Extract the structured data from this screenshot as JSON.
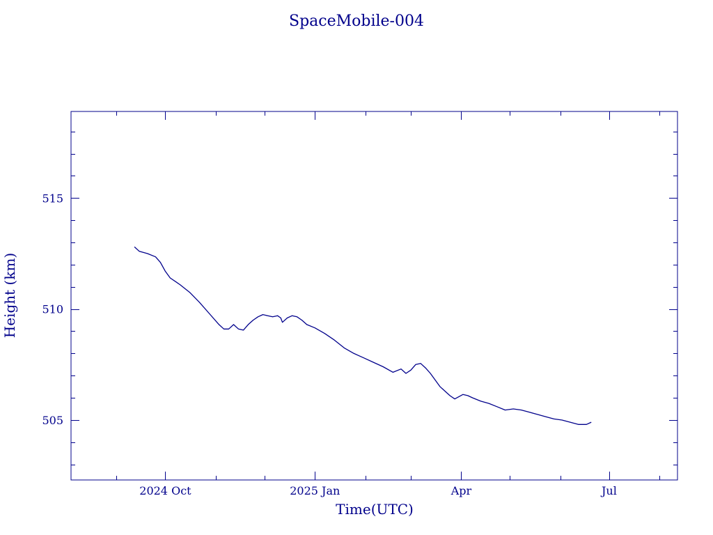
{
  "colors": {
    "ink": "#00008b",
    "background": "#ffffff"
  },
  "chart_data": {
    "type": "line",
    "title": "SpaceMobile-004",
    "xlabel": "Time(UTC)",
    "ylabel": "Height (km)",
    "x_is_date": true,
    "xlim": [
      "2024-08-04",
      "2025-08-12"
    ],
    "ylim": [
      502.3,
      518.9
    ],
    "grid": false,
    "x_ticks": [
      {
        "label": "2024 Oct",
        "value": "2024-10-01"
      },
      {
        "label": "2025 Jan",
        "value": "2025-01-01"
      },
      {
        "label": "Apr",
        "value": "2025-04-01"
      },
      {
        "label": "Jul",
        "value": "2025-07-01"
      }
    ],
    "y_ticks": [
      {
        "label": "505",
        "value": 505
      },
      {
        "label": "510",
        "value": 510
      },
      {
        "label": "515",
        "value": 515
      }
    ],
    "series": [
      {
        "x": [
          "2024-09-12",
          "2024-09-15",
          "2024-09-20",
          "2024-09-25",
          "2024-09-28",
          "2024-10-01",
          "2024-10-04",
          "2024-10-10",
          "2024-10-16",
          "2024-10-22",
          "2024-10-28",
          "2024-11-03",
          "2024-11-06",
          "2024-11-09",
          "2024-11-12",
          "2024-11-15",
          "2024-11-18",
          "2024-11-21",
          "2024-11-24",
          "2024-11-27",
          "2024-11-30",
          "2024-12-03",
          "2024-12-06",
          "2024-12-09",
          "2024-12-11",
          "2024-12-12",
          "2024-12-15",
          "2024-12-18",
          "2024-12-21",
          "2024-12-24",
          "2024-12-27",
          "2025-01-01",
          "2025-01-07",
          "2025-01-13",
          "2025-01-19",
          "2025-01-25",
          "2025-01-31",
          "2025-02-06",
          "2025-02-12",
          "2025-02-18",
          "2025-02-23",
          "2025-02-26",
          "2025-03-01",
          "2025-03-04",
          "2025-03-07",
          "2025-03-10",
          "2025-03-13",
          "2025-03-16",
          "2025-03-19",
          "2025-03-22",
          "2025-03-25",
          "2025-03-28",
          "2025-04-02",
          "2025-04-05",
          "2025-04-08",
          "2025-04-13",
          "2025-04-18",
          "2025-04-23",
          "2025-04-28",
          "2025-05-03",
          "2025-05-08",
          "2025-05-13",
          "2025-05-18",
          "2025-05-23",
          "2025-05-28",
          "2025-06-02",
          "2025-06-07",
          "2025-06-12",
          "2025-06-17",
          "2025-06-20"
        ],
        "y": [
          512.8,
          512.6,
          512.5,
          512.35,
          512.1,
          511.7,
          511.4,
          511.1,
          510.75,
          510.3,
          509.8,
          509.3,
          509.1,
          509.1,
          509.3,
          509.1,
          509.05,
          509.3,
          509.5,
          509.65,
          509.75,
          509.7,
          509.65,
          509.7,
          509.6,
          509.4,
          509.6,
          509.7,
          509.65,
          509.5,
          509.3,
          509.15,
          508.9,
          508.6,
          508.25,
          508.0,
          507.8,
          507.6,
          507.4,
          507.15,
          507.3,
          507.1,
          507.25,
          507.5,
          507.55,
          507.35,
          507.1,
          506.8,
          506.5,
          506.3,
          506.1,
          505.95,
          506.15,
          506.1,
          506.0,
          505.85,
          505.75,
          505.6,
          505.45,
          505.5,
          505.45,
          505.35,
          505.25,
          505.15,
          505.05,
          505.0,
          504.9,
          504.8,
          504.8,
          504.9
        ]
      }
    ]
  }
}
